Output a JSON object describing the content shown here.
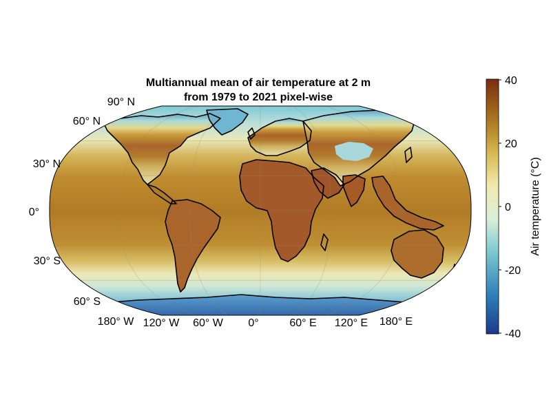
{
  "figure": {
    "title_line1": "Multiannual mean of air temperature at 2 m",
    "title_line2": "from 1979 to 2021 pixel-wise"
  },
  "map": {
    "projection": "Winkel Tripel / Robinson-like (pseudo-cylindrical)",
    "lat_labels": [
      "90° N",
      "60° N",
      "30° N",
      "0°",
      "30° S",
      "60° S"
    ],
    "lon_labels": [
      "180° W",
      "120° W",
      "60° W",
      "0°",
      "60° E",
      "120° E",
      "180° E"
    ],
    "coastlines": "black",
    "gridlines": true
  },
  "colorbar": {
    "label": "Air temperature (°C)",
    "ticks": [
      "40",
      "20",
      "0",
      "-20",
      "-40"
    ],
    "range": [
      -40,
      40
    ],
    "colors": [
      "#1c3a8a",
      "#2f7fb8",
      "#7cc7d1",
      "#d9efd8",
      "#f1eaae",
      "#d9bd58",
      "#b78a2b",
      "#9a5a1b",
      "#7a2c10"
    ]
  }
}
